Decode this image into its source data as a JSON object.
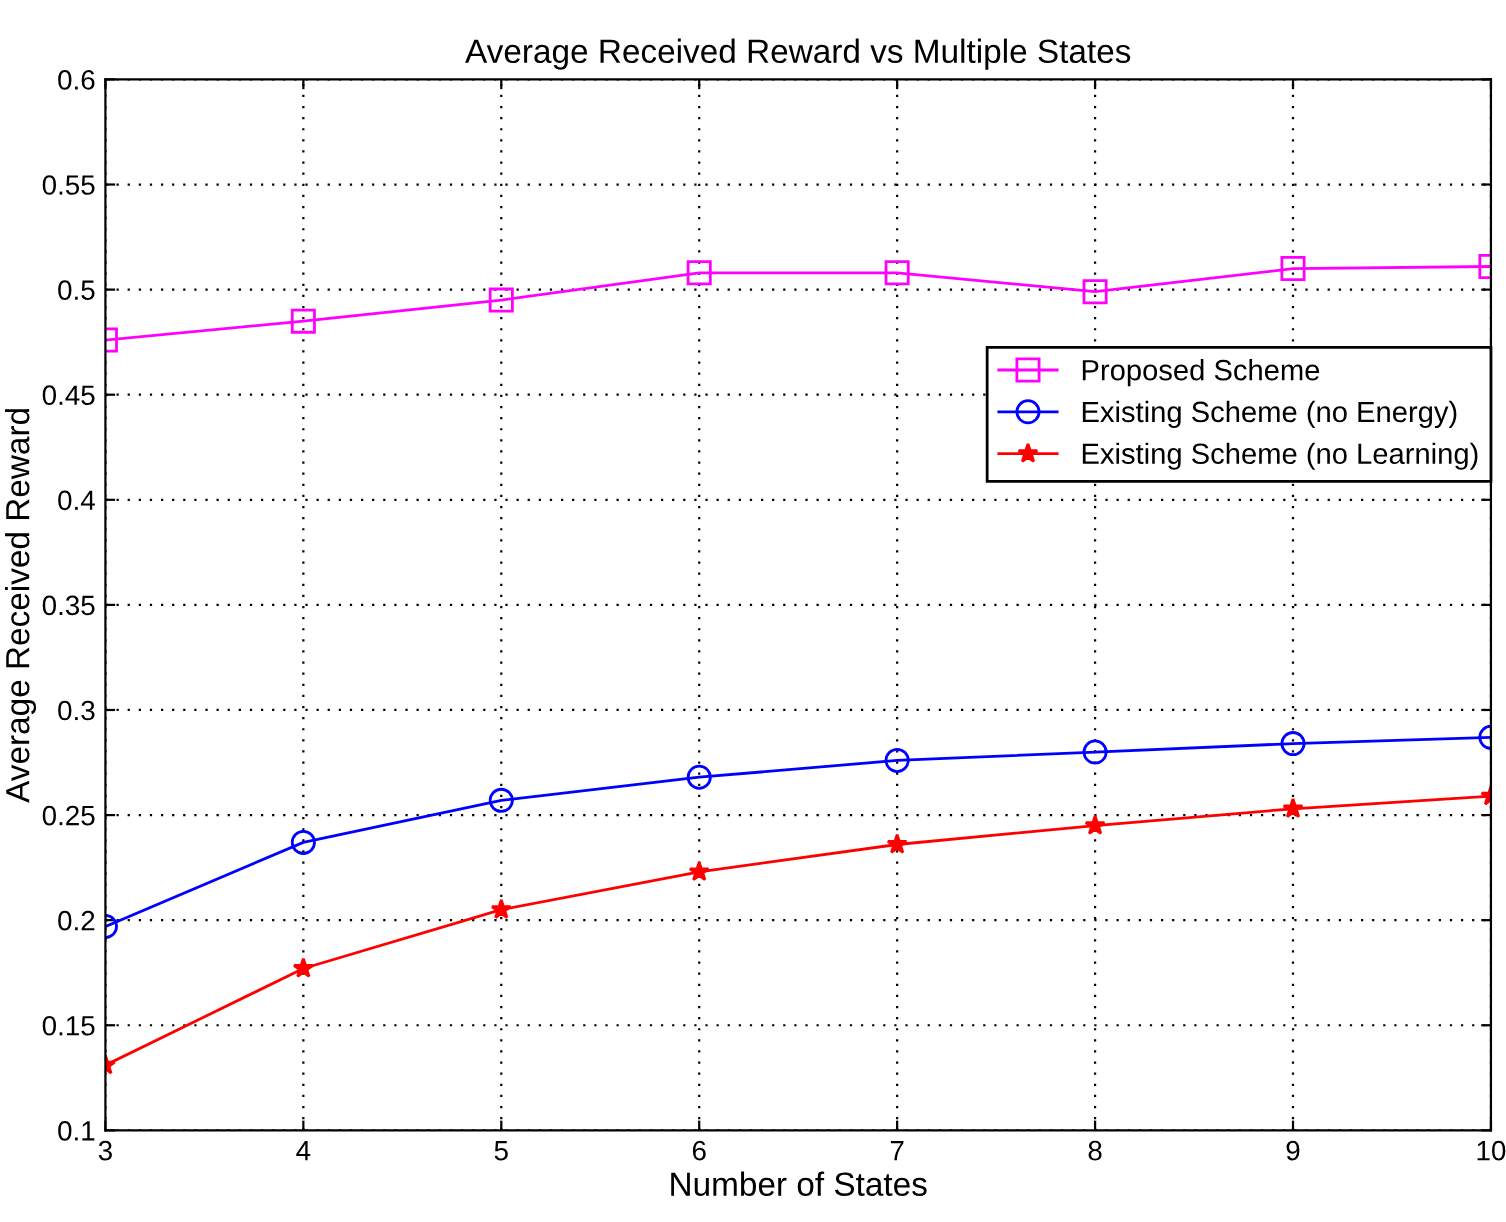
{
  "chart_data": {
    "type": "line",
    "title": "Average Received Reward vs Multiple States",
    "xlabel": "Number of States",
    "ylabel": "Average Received Reward",
    "x": [
      3,
      4,
      5,
      6,
      7,
      8,
      9,
      10
    ],
    "series": [
      {
        "name": "Proposed Scheme",
        "color": "#ff00ff",
        "marker": "square",
        "values": [
          0.476,
          0.485,
          0.495,
          0.508,
          0.508,
          0.499,
          0.51,
          0.511
        ]
      },
      {
        "name": "Existing Scheme (no Energy)",
        "color": "#0000ff",
        "marker": "circle",
        "values": [
          0.197,
          0.237,
          0.257,
          0.268,
          0.276,
          0.28,
          0.284,
          0.287
        ]
      },
      {
        "name": "Existing Scheme (no Learning)",
        "color": "#ff0000",
        "marker": "star",
        "values": [
          0.131,
          0.177,
          0.205,
          0.223,
          0.236,
          0.245,
          0.253,
          0.259
        ]
      }
    ],
    "xlim": [
      3,
      10
    ],
    "xticks": [
      3,
      4,
      5,
      6,
      7,
      8,
      9,
      10
    ],
    "ylim": [
      0.1,
      0.6
    ],
    "yticks": [
      0.1,
      0.15,
      0.2,
      0.25,
      0.3,
      0.35,
      0.4,
      0.45,
      0.5,
      0.55,
      0.6
    ],
    "grid": true,
    "legend": "right",
    "line_style": "solid"
  }
}
